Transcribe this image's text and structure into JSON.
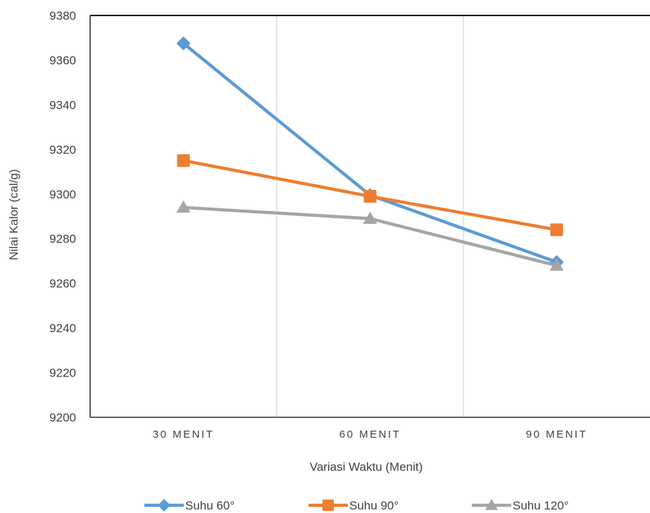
{
  "chart_data": {
    "type": "line",
    "title": "",
    "xlabel": "Variasi Waktu (Menit)",
    "ylabel": "Nilai Kalor (cal/g)",
    "categories": [
      "30 MENIT",
      "60 MENIT",
      "90 MENIT"
    ],
    "ylim": [
      9200,
      9380
    ],
    "yticks": [
      9200,
      9220,
      9240,
      9260,
      9280,
      9300,
      9320,
      9340,
      9360,
      9380
    ],
    "grid": "vertical",
    "legend": "bottom",
    "series": [
      {
        "name": "Suhu 60°",
        "values": [
          9367.5,
          9299.5,
          9269.5
        ],
        "color": "#5b9bd5",
        "marker": "diamond"
      },
      {
        "name": "Suhu 90°",
        "values": [
          9315,
          9299,
          9284
        ],
        "color": "#ed7d31",
        "marker": "square"
      },
      {
        "name": "Suhu 120°",
        "values": [
          9294,
          9289,
          9268
        ],
        "color": "#a5a5a5",
        "marker": "triangle"
      }
    ]
  }
}
